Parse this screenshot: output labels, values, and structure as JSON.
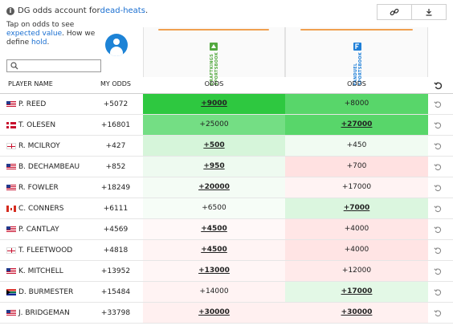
{
  "top_note": {
    "prefix": "DG odds account for ",
    "link": "dead-heats",
    "suffix": "."
  },
  "tap_note": {
    "line1": "Tap on odds to see ",
    "link1": "expected value",
    "mid": ". How we define ",
    "link2": "hold",
    "end": "."
  },
  "search": {
    "placeholder": ""
  },
  "columns": {
    "player": "PLAYER NAME",
    "my_odds": "MY ODDS",
    "book1": "ODDS",
    "book2": "ODDS"
  },
  "books": [
    {
      "name": "DraftKings Sportsbook",
      "logo_text": "DRAFTKINGS SPORTSBOOK",
      "logo_color": "#53a93f"
    },
    {
      "name": "FanDuel Sportsbook",
      "logo_text": "FANDUEL SPORTSBOOK",
      "logo_color": "#1e7fd8"
    }
  ],
  "icons": {
    "info": "info-icon",
    "link": "link-icon",
    "download": "download-icon",
    "search": "search-icon",
    "reset": "reset-icon",
    "avatar": "user-avatar-icon"
  },
  "rows": [
    {
      "flag": "usa",
      "player": "P. REED",
      "my_odds": "+5072",
      "b1": "+9000",
      "b1_best": true,
      "b1_bg": "#2ec840",
      "b2": "+8000",
      "b2_best": false,
      "b2_bg": "#58d66a"
    },
    {
      "flag": "den",
      "player": "T. OLESEN",
      "my_odds": "+16801",
      "b1": "+25000",
      "b1_best": false,
      "b1_bg": "#74de84",
      "b2": "+27000",
      "b2_best": true,
      "b2_bg": "#58d66a"
    },
    {
      "flag": "eng",
      "player": "R. MCILROY",
      "my_odds": "+427",
      "b1": "+500",
      "b1_best": true,
      "b1_bg": "#d6f5da",
      "b2": "+450",
      "b2_best": false,
      "b2_bg": "#f1fbf2"
    },
    {
      "flag": "usa",
      "player": "B. DECHAMBEAU",
      "my_odds": "+852",
      "b1": "+950",
      "b1_best": true,
      "b1_bg": "#eefaf0",
      "b2": "+700",
      "b2_best": false,
      "b2_bg": "#ffe1e1"
    },
    {
      "flag": "usa",
      "player": "R. FOWLER",
      "my_odds": "+18249",
      "b1": "+20000",
      "b1_best": true,
      "b1_bg": "#f4fcf5",
      "b2": "+17000",
      "b2_best": false,
      "b2_bg": "#fff3f3"
    },
    {
      "flag": "can",
      "player": "C. CONNERS",
      "my_odds": "+6111",
      "b1": "+6500",
      "b1_best": false,
      "b1_bg": "#f6fdf7",
      "b2": "+7000",
      "b2_best": true,
      "b2_bg": "#dbf6df"
    },
    {
      "flag": "usa",
      "player": "P. CANTLAY",
      "my_odds": "+4569",
      "b1": "+4500",
      "b1_best": true,
      "b1_bg": "#fff8f8",
      "b2": "+4000",
      "b2_best": false,
      "b2_bg": "#ffe6e6"
    },
    {
      "flag": "eng",
      "player": "T. FLEETWOOD",
      "my_odds": "+4818",
      "b1": "+4500",
      "b1_best": true,
      "b1_bg": "#fff4f4",
      "b2": "+4000",
      "b2_best": false,
      "b2_bg": "#ffe4e4"
    },
    {
      "flag": "usa",
      "player": "K. MITCHELL",
      "my_odds": "+13952",
      "b1": "+13000",
      "b1_best": true,
      "b1_bg": "#fff6f6",
      "b2": "+12000",
      "b2_best": false,
      "b2_bg": "#ffeaea"
    },
    {
      "flag": "rsa",
      "player": "D. BURMESTER",
      "my_odds": "+15484",
      "b1": "+14000",
      "b1_best": false,
      "b1_bg": "#fff3f3",
      "b2": "+17000",
      "b2_best": true,
      "b2_bg": "#e3f8e6"
    },
    {
      "flag": "usa",
      "player": "J. BRIDGEMAN",
      "my_odds": "+33798",
      "b1": "+30000",
      "b1_best": true,
      "b1_bg": "#fff0f0",
      "b2": "+30000",
      "b2_best": true,
      "b2_bg": "#fff0f0"
    }
  ]
}
